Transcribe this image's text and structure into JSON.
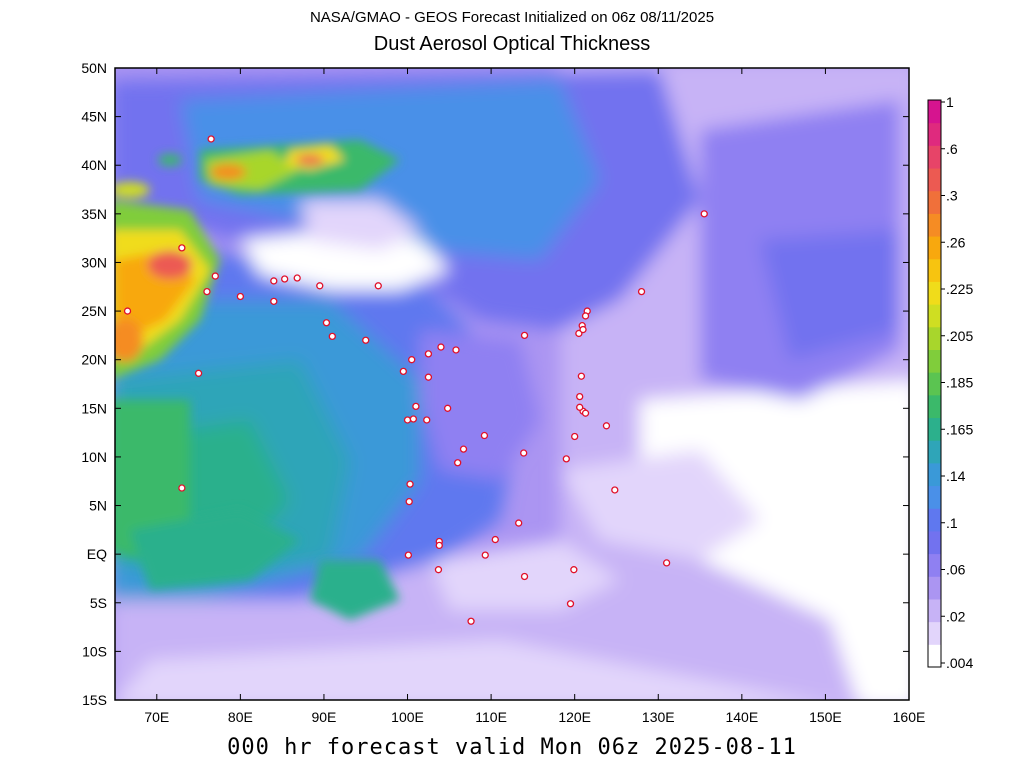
{
  "header": {
    "subtitle": "NASA/GMAO - GEOS Forecast Initialized on 06z 08/11/2025",
    "title": "Dust Aerosol Optical Thickness"
  },
  "footer": {
    "valid_text": "000 hr forecast valid Mon 06z 2025-08-11"
  },
  "map": {
    "lon_range": [
      65,
      160
    ],
    "lat_range": [
      -15,
      50
    ],
    "lon_ticks": [
      {
        "value": 70,
        "label": "70E"
      },
      {
        "value": 80,
        "label": "80E"
      },
      {
        "value": 90,
        "label": "90E"
      },
      {
        "value": 100,
        "label": "100E"
      },
      {
        "value": 110,
        "label": "110E"
      },
      {
        "value": 120,
        "label": "120E"
      },
      {
        "value": 130,
        "label": "130E"
      },
      {
        "value": 140,
        "label": "140E"
      },
      {
        "value": 150,
        "label": "150E"
      },
      {
        "value": 160,
        "label": "160E"
      }
    ],
    "lat_ticks": [
      {
        "value": 50,
        "label": "50N"
      },
      {
        "value": 45,
        "label": "45N"
      },
      {
        "value": 40,
        "label": "40N"
      },
      {
        "value": 35,
        "label": "35N"
      },
      {
        "value": 30,
        "label": "30N"
      },
      {
        "value": 25,
        "label": "25N"
      },
      {
        "value": 20,
        "label": "20N"
      },
      {
        "value": 15,
        "label": "15N"
      },
      {
        "value": 10,
        "label": "10N"
      },
      {
        "value": 5,
        "label": "5N"
      },
      {
        "value": 0,
        "label": "EQ"
      },
      {
        "value": -5,
        "label": "5S"
      },
      {
        "value": -10,
        "label": "10S"
      },
      {
        "value": -15,
        "label": "15S"
      }
    ],
    "stations": [
      [
        76.5,
        42.7
      ],
      [
        66.5,
        25.0
      ],
      [
        73.0,
        31.5
      ],
      [
        77.0,
        28.6
      ],
      [
        76.0,
        27.0
      ],
      [
        80.0,
        26.5
      ],
      [
        84.0,
        28.1
      ],
      [
        85.3,
        28.3
      ],
      [
        86.8,
        28.4
      ],
      [
        84.0,
        26.0
      ],
      [
        89.5,
        27.6
      ],
      [
        96.5,
        27.6
      ],
      [
        73.0,
        6.8
      ],
      [
        75.0,
        18.6
      ],
      [
        90.3,
        23.8
      ],
      [
        91.0,
        22.4
      ],
      [
        95.0,
        22.0
      ],
      [
        100.5,
        20.0
      ],
      [
        102.5,
        20.6
      ],
      [
        104.0,
        21.3
      ],
      [
        105.8,
        21.0
      ],
      [
        99.5,
        18.8
      ],
      [
        102.5,
        18.2
      ],
      [
        101.0,
        15.2
      ],
      [
        102.3,
        13.8
      ],
      [
        100.0,
        13.8
      ],
      [
        100.7,
        13.9
      ],
      [
        104.8,
        15.0
      ],
      [
        106.7,
        10.8
      ],
      [
        106.0,
        9.4
      ],
      [
        109.2,
        12.2
      ],
      [
        114.0,
        22.5
      ],
      [
        121.5,
        25.0
      ],
      [
        121.3,
        24.5
      ],
      [
        120.9,
        23.5
      ],
      [
        120.5,
        22.7
      ],
      [
        121.0,
        23.1
      ],
      [
        128.0,
        27.0
      ],
      [
        135.5,
        35.0
      ],
      [
        120.8,
        18.3
      ],
      [
        120.6,
        16.2
      ],
      [
        121.0,
        14.7
      ],
      [
        121.3,
        14.5
      ],
      [
        120.6,
        15.1
      ],
      [
        123.8,
        13.2
      ],
      [
        120.0,
        12.1
      ],
      [
        119.0,
        9.8
      ],
      [
        113.9,
        10.4
      ],
      [
        100.3,
        7.2
      ],
      [
        100.2,
        5.4
      ],
      [
        103.8,
        1.3
      ],
      [
        103.8,
        0.9
      ],
      [
        100.1,
        -0.1
      ],
      [
        103.7,
        -1.6
      ],
      [
        109.3,
        -0.1
      ],
      [
        110.5,
        1.5
      ],
      [
        113.3,
        3.2
      ],
      [
        114.0,
        -2.3
      ],
      [
        119.9,
        -1.6
      ],
      [
        119.5,
        -5.1
      ],
      [
        107.6,
        -6.9
      ],
      [
        124.8,
        6.6
      ],
      [
        131.0,
        -0.9
      ]
    ]
  },
  "colorbar": {
    "ticks": [
      ".004",
      ".02",
      ".06",
      ".1",
      ".14",
      ".165",
      ".185",
      ".205",
      ".225",
      ".26",
      ".3",
      ".6",
      "1"
    ],
    "colors": [
      "#ffffff",
      "#e2d5fb",
      "#c7b3f6",
      "#ab95f2",
      "#8f80f2",
      "#7272ef",
      "#5f78ef",
      "#4a90e8",
      "#3a99d8",
      "#2fa5b8",
      "#2cb08c",
      "#3bb96a",
      "#5bc451",
      "#80cd3b",
      "#a8d62c",
      "#cfde22",
      "#f0dc1a",
      "#f7c410",
      "#f8a80e",
      "#f58c24",
      "#f0703a",
      "#ec5a52",
      "#e74468",
      "#df2a7e",
      "#d6148f"
    ]
  }
}
